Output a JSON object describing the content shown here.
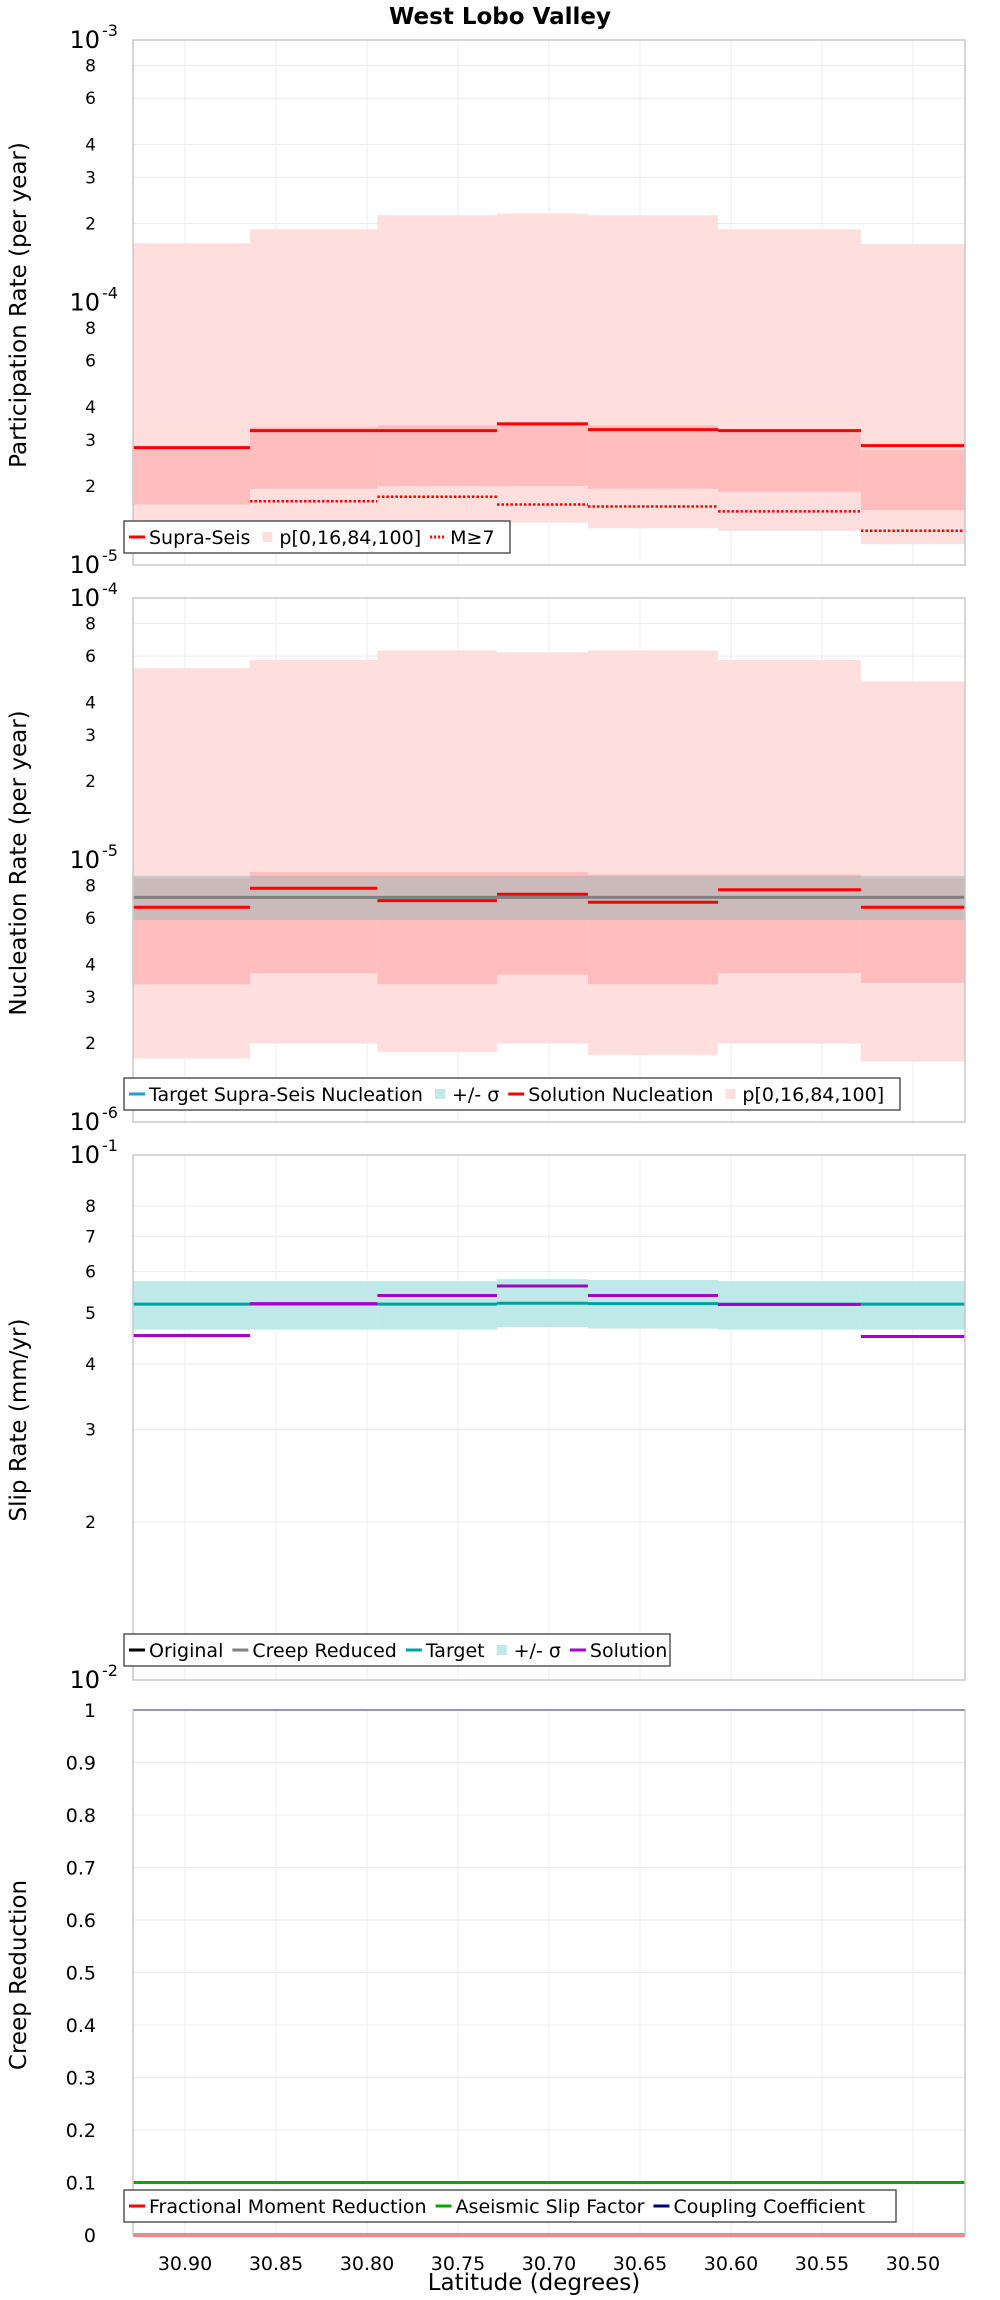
{
  "colors": {
    "solution": "#ff0000",
    "band_outer": "#ffdede",
    "band_inner": "#ffbdbd",
    "target_band": "#bfe8e8",
    "target_line": "#00a0a0",
    "target_supra": "#1aa0dd",
    "target_grey": "#808080",
    "slip_solution": "#aa00cc",
    "aseismic": "#00aa00",
    "coupling": "#000080",
    "grid": "#ececec",
    "frame": "#c8c8c8"
  },
  "chart_data": [
    {
      "id": "participation",
      "type": "line",
      "title": "West Lobo Valley",
      "ylabel": "Participation Rate (per year)",
      "yscale": "log",
      "ylim": [
        1e-05,
        0.001
      ],
      "xlim": [
        30.9286,
        30.4714
      ],
      "x_reversed": true,
      "grid": true,
      "legend_position": "bottom-left",
      "y_ticks": [
        {
          "v": 1e-05,
          "base": "10",
          "exp": "-5"
        },
        {
          "v": 2e-05,
          "text": "2"
        },
        {
          "v": 3e-05,
          "text": "3"
        },
        {
          "v": 4e-05,
          "text": "4"
        },
        {
          "v": 6e-05,
          "text": "6"
        },
        {
          "v": 8e-05,
          "text": "8"
        },
        {
          "v": 0.0001,
          "base": "10",
          "exp": "-4"
        },
        {
          "v": 0.0002,
          "text": "2"
        },
        {
          "v": 0.0003,
          "text": "3"
        },
        {
          "v": 0.0004,
          "text": "4"
        },
        {
          "v": 0.0006,
          "text": "6"
        },
        {
          "v": 0.0008,
          "text": "8"
        },
        {
          "v": 0.001,
          "base": "10",
          "exp": "-3"
        }
      ],
      "segments": [
        {
          "x": [
            30.9286,
            30.8643
          ],
          "supra": 2.8e-05,
          "m7": 1.45e-05,
          "p0": 1.3e-05,
          "p16": 1.7e-05,
          "p84": 2.8e-05,
          "p100": 0.000168
        },
        {
          "x": [
            30.8643,
            30.7943
          ],
          "supra": 3.25e-05,
          "m7": 1.75e-05,
          "p0": 1.4e-05,
          "p16": 1.95e-05,
          "p84": 3.35e-05,
          "p100": 0.00019
        },
        {
          "x": [
            30.7943,
            30.7286
          ],
          "supra": 3.25e-05,
          "m7": 1.82e-05,
          "p0": 1.45e-05,
          "p16": 2e-05,
          "p84": 3.4e-05,
          "p100": 0.000215
        },
        {
          "x": [
            30.7286,
            30.6786
          ],
          "supra": 3.45e-05,
          "m7": 1.7e-05,
          "p0": 1.45e-05,
          "p16": 2e-05,
          "p84": 3.5e-05,
          "p100": 0.000218
        },
        {
          "x": [
            30.6786,
            30.6071
          ],
          "supra": 3.28e-05,
          "m7": 1.67e-05,
          "p0": 1.38e-05,
          "p16": 1.95e-05,
          "p84": 3.4e-05,
          "p100": 0.000215
        },
        {
          "x": [
            30.6071,
            30.5286
          ],
          "supra": 3.25e-05,
          "m7": 1.6e-05,
          "p0": 1.35e-05,
          "p16": 1.9e-05,
          "p84": 3.3e-05,
          "p100": 0.00019
        },
        {
          "x": [
            30.5286,
            30.4714
          ],
          "supra": 2.85e-05,
          "m7": 1.35e-05,
          "p0": 1.2e-05,
          "p16": 1.62e-05,
          "p84": 2.75e-05,
          "p100": 0.000167
        }
      ],
      "legend": [
        {
          "label": "Supra-Seis",
          "kind": "line",
          "color_key": "solution"
        },
        {
          "label": "p[0,16,84,100]",
          "kind": "box",
          "color_key": "band_outer"
        },
        {
          "label": "M≥7",
          "kind": "dotted",
          "color_key": "solution"
        }
      ]
    },
    {
      "id": "nucleation",
      "type": "line",
      "ylabel": "Nucleation Rate (per year)",
      "yscale": "log",
      "ylim": [
        1e-06,
        0.0001
      ],
      "xlim": [
        30.9286,
        30.4714
      ],
      "x_reversed": true,
      "grid": true,
      "legend_position": "bottom-left",
      "y_ticks": [
        {
          "v": 1e-06,
          "base": "10",
          "exp": "-6"
        },
        {
          "v": 2e-06,
          "text": "2"
        },
        {
          "v": 3e-06,
          "text": "3"
        },
        {
          "v": 4e-06,
          "text": "4"
        },
        {
          "v": 6e-06,
          "text": "6"
        },
        {
          "v": 8e-06,
          "text": "8"
        },
        {
          "v": 1e-05,
          "base": "10",
          "exp": "-5"
        },
        {
          "v": 2e-05,
          "text": "2"
        },
        {
          "v": 3e-05,
          "text": "3"
        },
        {
          "v": 4e-05,
          "text": "4"
        },
        {
          "v": 6e-05,
          "text": "6"
        },
        {
          "v": 8e-05,
          "text": "8"
        },
        {
          "v": 0.0001,
          "base": "10",
          "exp": "-4"
        }
      ],
      "target": 7.2e-06,
      "target_band": [
        5.9e-06,
        8.7e-06
      ],
      "segments": [
        {
          "x": [
            30.9286,
            30.8643
          ],
          "solution": 6.6e-06,
          "p0": 1.75e-06,
          "p16": 3.35e-06,
          "p84": 8.5e-06,
          "p100": 5.4e-05
        },
        {
          "x": [
            30.8643,
            30.7943
          ],
          "solution": 7.8e-06,
          "p0": 2e-06,
          "p16": 3.7e-06,
          "p84": 9e-06,
          "p100": 5.8e-05
        },
        {
          "x": [
            30.7943,
            30.7286
          ],
          "solution": 7e-06,
          "p0": 1.85e-06,
          "p16": 3.35e-06,
          "p84": 9e-06,
          "p100": 6.3e-05
        },
        {
          "x": [
            30.7286,
            30.6786
          ],
          "solution": 7.4e-06,
          "p0": 2e-06,
          "p16": 3.65e-06,
          "p84": 9e-06,
          "p100": 6.2e-05
        },
        {
          "x": [
            30.6786,
            30.6071
          ],
          "solution": 6.9e-06,
          "p0": 1.8e-06,
          "p16": 3.35e-06,
          "p84": 8.8e-06,
          "p100": 6.3e-05
        },
        {
          "x": [
            30.6071,
            30.5286
          ],
          "solution": 7.7e-06,
          "p0": 2e-06,
          "p16": 3.7e-06,
          "p84": 8.8e-06,
          "p100": 5.8e-05
        },
        {
          "x": [
            30.5286,
            30.4714
          ],
          "solution": 6.6e-06,
          "p0": 1.7e-06,
          "p16": 3.4e-06,
          "p84": 8.5e-06,
          "p100": 4.8e-05
        }
      ],
      "legend": [
        {
          "label": "Target Supra-Seis Nucleation",
          "kind": "line",
          "color_key": "target_supra"
        },
        {
          "label": "+/- σ",
          "kind": "box",
          "color_key": "target_band"
        },
        {
          "label": "Solution Nucleation",
          "kind": "line",
          "color_key": "solution"
        },
        {
          "label": "p[0,16,84,100]",
          "kind": "box",
          "color_key": "band_outer"
        }
      ]
    },
    {
      "id": "slip",
      "type": "line",
      "ylabel": "Slip Rate (mm/yr)",
      "yscale": "log",
      "ylim": [
        0.01,
        0.1
      ],
      "xlim": [
        30.9286,
        30.4714
      ],
      "x_reversed": true,
      "grid": true,
      "legend_position": "bottom-left",
      "y_ticks": [
        {
          "v": 0.01,
          "base": "10",
          "exp": "-2"
        },
        {
          "v": 0.02,
          "text": "2"
        },
        {
          "v": 0.03,
          "text": "3"
        },
        {
          "v": 0.04,
          "text": "4"
        },
        {
          "v": 0.05,
          "text": "5"
        },
        {
          "v": 0.06,
          "text": "6"
        },
        {
          "v": 0.07,
          "text": "7"
        },
        {
          "v": 0.08,
          "text": "8"
        },
        {
          "v": 0.1,
          "base": "10",
          "exp": "-1"
        }
      ],
      "segments": [
        {
          "x": [
            30.9286,
            30.8643
          ],
          "target": 0.052,
          "band": [
            0.0465,
            0.0575
          ],
          "solution": 0.0453
        },
        {
          "x": [
            30.8643,
            30.7943
          ],
          "target": 0.052,
          "band": [
            0.0465,
            0.0575
          ],
          "solution": 0.0521
        },
        {
          "x": [
            30.7943,
            30.7286
          ],
          "target": 0.052,
          "band": [
            0.0465,
            0.0575
          ],
          "solution": 0.054
        },
        {
          "x": [
            30.7286,
            30.6786
          ],
          "target": 0.0522,
          "band": [
            0.047,
            0.058
          ],
          "solution": 0.0563
        },
        {
          "x": [
            30.6786,
            30.6071
          ],
          "target": 0.0521,
          "band": [
            0.0467,
            0.0578
          ],
          "solution": 0.054
        },
        {
          "x": [
            30.6071,
            30.5286
          ],
          "target": 0.052,
          "band": [
            0.0465,
            0.0575
          ],
          "solution": 0.0519
        },
        {
          "x": [
            30.5286,
            30.4714
          ],
          "target": 0.052,
          "band": [
            0.0465,
            0.0575
          ],
          "solution": 0.0451
        }
      ],
      "legend": [
        {
          "label": "Original",
          "kind": "line",
          "color_key": "black"
        },
        {
          "label": "Creep Reduced",
          "kind": "line",
          "color_key": "target_grey"
        },
        {
          "label": "Target",
          "kind": "line",
          "color_key": "target_line"
        },
        {
          "label": "+/- σ",
          "kind": "box",
          "color_key": "target_band"
        },
        {
          "label": "Solution",
          "kind": "line",
          "color_key": "slip_solution"
        }
      ]
    },
    {
      "id": "creep",
      "type": "line",
      "ylabel": "Creep Reduction",
      "xlabel": "Latitude (degrees)",
      "yscale": "linear",
      "ylim": [
        0,
        1
      ],
      "xlim": [
        30.9286,
        30.4714
      ],
      "x_reversed": true,
      "grid": true,
      "legend_position": "bottom-left",
      "x_ticks": [
        "30.90",
        "30.85",
        "30.80",
        "30.75",
        "30.70",
        "30.65",
        "30.60",
        "30.55",
        "30.50"
      ],
      "y_ticks": [
        "0",
        "0.1",
        "0.2",
        "0.3",
        "0.4",
        "0.5",
        "0.6",
        "0.7",
        "0.8",
        "0.9",
        "1"
      ],
      "series": [
        {
          "name": "Fractional Moment Reduction",
          "value": 0.0
        },
        {
          "name": "Aseismic Slip Factor",
          "value": 0.1
        },
        {
          "name": "Coupling Coefficient",
          "value": 1.0
        }
      ],
      "legend": [
        {
          "label": "Fractional Moment Reduction",
          "kind": "line",
          "color_key": "solution"
        },
        {
          "label": "Aseismic Slip Factor",
          "kind": "line",
          "color_key": "aseismic"
        },
        {
          "label": "Coupling Coefficient",
          "kind": "line",
          "color_key": "coupling"
        }
      ]
    }
  ]
}
